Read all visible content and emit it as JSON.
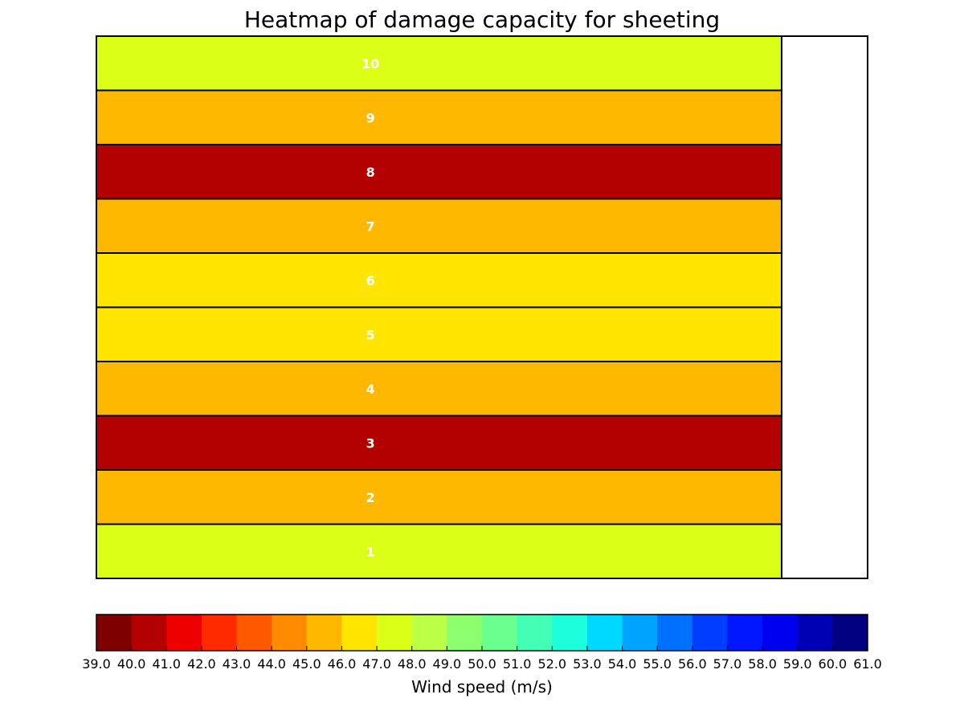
{
  "chart_data": {
    "type": "heatmap",
    "title": "Heatmap of damage capacity for sheeting",
    "rows": [
      {
        "label": "10",
        "value": 47.5
      },
      {
        "label": "9",
        "value": 45.5
      },
      {
        "label": "8",
        "value": 40.5
      },
      {
        "label": "7",
        "value": 45.5
      },
      {
        "label": "6",
        "value": 46.5
      },
      {
        "label": "5",
        "value": 46.5
      },
      {
        "label": "4",
        "value": 45.5
      },
      {
        "label": "3",
        "value": 40.5
      },
      {
        "label": "2",
        "value": 45.5
      },
      {
        "label": "1",
        "value": 47.5
      }
    ],
    "colorbar": {
      "label": "Wind speed (m/s)",
      "min": 39.0,
      "max": 61.0,
      "ticks": [
        "39.0",
        "40.0",
        "41.0",
        "42.0",
        "43.0",
        "44.0",
        "45.0",
        "46.0",
        "47.0",
        "48.0",
        "49.0",
        "50.0",
        "51.0",
        "52.0",
        "53.0",
        "54.0",
        "55.0",
        "56.0",
        "57.0",
        "58.0",
        "59.0",
        "60.0",
        "61.0"
      ],
      "colors": [
        "#7f0000",
        "#b30000",
        "#ee0000",
        "#ff2a00",
        "#ff5900",
        "#ff8b00",
        "#ffb800",
        "#ffe500",
        "#dbff16",
        "#bbff46",
        "#8bff6d",
        "#6aff8e",
        "#43ffb6",
        "#1dffdc",
        "#00d9ff",
        "#00a4ff",
        "#0071ff",
        "#003eff",
        "#0016ff",
        "#0000f1",
        "#0000b4",
        "#000080"
      ]
    },
    "grid": false,
    "legend": "colorbar-bottom"
  }
}
